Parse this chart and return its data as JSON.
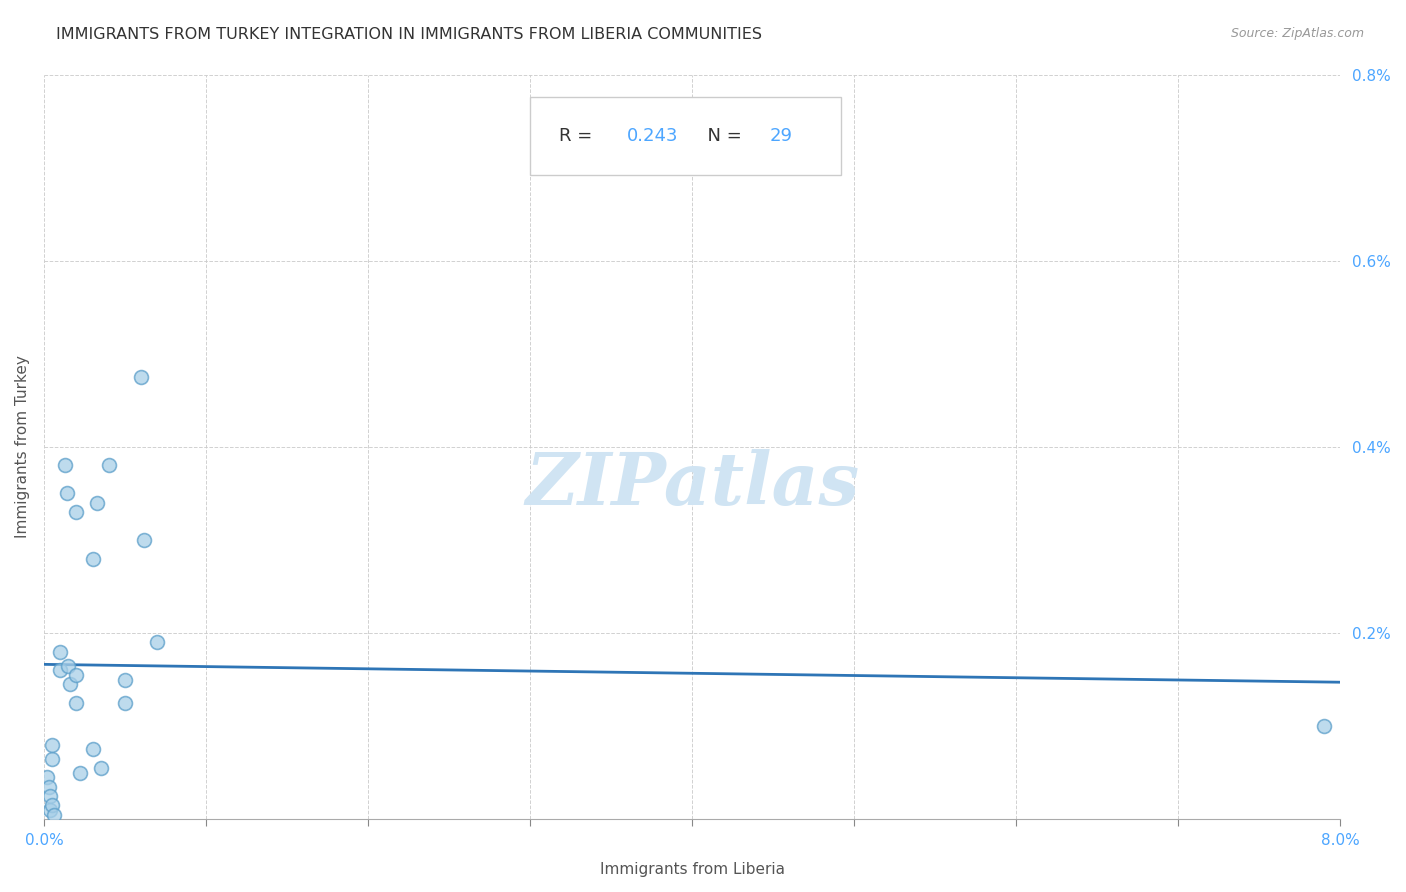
{
  "title": "IMMIGRANTS FROM TURKEY INTEGRATION IN IMMIGRANTS FROM LIBERIA COMMUNITIES",
  "source": "Source: ZipAtlas.com",
  "xlabel": "Immigrants from Liberia",
  "ylabel": "Immigrants from Turkey",
  "R": 0.243,
  "N": 29,
  "x_min": 0.0,
  "x_max": 0.08,
  "y_min": 0.0,
  "y_max": 0.008,
  "x_tick_positions": [
    0.0,
    0.01,
    0.02,
    0.03,
    0.04,
    0.05,
    0.06,
    0.07,
    0.08
  ],
  "x_tick_labels": [
    "0.0%",
    "",
    "",
    "",
    "",
    "",
    "",
    "",
    "8.0%"
  ],
  "y_tick_positions": [
    0.0,
    0.002,
    0.004,
    0.006,
    0.008
  ],
  "y_tick_labels": [
    "",
    "0.2%",
    "0.4%",
    "0.6%",
    "0.8%"
  ],
  "scatter_color": "#a8cfe8",
  "scatter_edge_color": "#5b9ec9",
  "scatter_alpha": 0.75,
  "scatter_size": 100,
  "line_color": "#2e75b6",
  "watermark": "ZIPatlas",
  "watermark_color": "#d0e4f3",
  "background_color": "#ffffff",
  "grid_color": "#cccccc",
  "tick_color": "#4da6ff",
  "label_color": "#555555",
  "title_color": "#333333",
  "source_color": "#999999",
  "annotation_box_color": "#cccccc",
  "annotation_r_label_color": "#333333",
  "annotation_value_color": "#4da6ff",
  "scatter_x": [
    0.0002,
    0.0003,
    0.0004,
    0.0004,
    0.0005,
    0.0005,
    0.0005,
    0.0006,
    0.001,
    0.001,
    0.0013,
    0.0014,
    0.0015,
    0.0016,
    0.002,
    0.002,
    0.002,
    0.0022,
    0.003,
    0.003,
    0.0033,
    0.0035,
    0.004,
    0.005,
    0.005,
    0.006,
    0.0062,
    0.007,
    0.079
  ],
  "scatter_y": [
    0.00045,
    0.00035,
    0.00025,
    0.0001,
    0.00065,
    0.00015,
    0.0008,
    5e-05,
    0.0018,
    0.0016,
    0.0038,
    0.0035,
    0.00165,
    0.00145,
    0.0033,
    0.00155,
    0.00125,
    0.0005,
    0.0028,
    0.00075,
    0.0034,
    0.00055,
    0.0038,
    0.0015,
    0.00125,
    0.00475,
    0.003,
    0.0019,
    0.001
  ],
  "title_fontsize": 11.5,
  "axis_label_fontsize": 11,
  "tick_fontsize": 11,
  "watermark_fontsize": 52,
  "line_width": 2.0
}
